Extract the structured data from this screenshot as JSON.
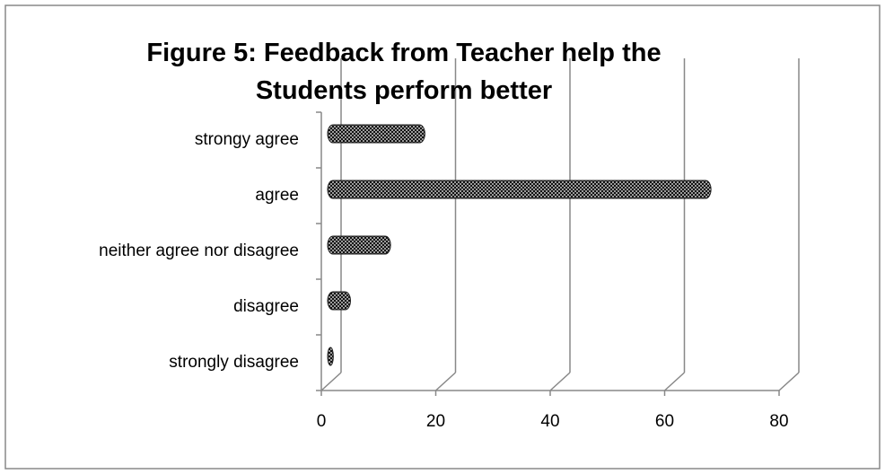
{
  "chart_data": {
    "type": "bar",
    "orientation": "horizontal",
    "title": "Figure 5: Feedback from Teacher help the Students perform better",
    "categories": [
      "strongy agree",
      "agree",
      "neither agree nor disagree",
      "disagree",
      "strongly disagree"
    ],
    "values": [
      17,
      67,
      11,
      4,
      1
    ],
    "color": "#222222",
    "xlim": [
      0,
      80
    ],
    "xticks": [
      0,
      20,
      40,
      60,
      80
    ],
    "grid": true
  }
}
